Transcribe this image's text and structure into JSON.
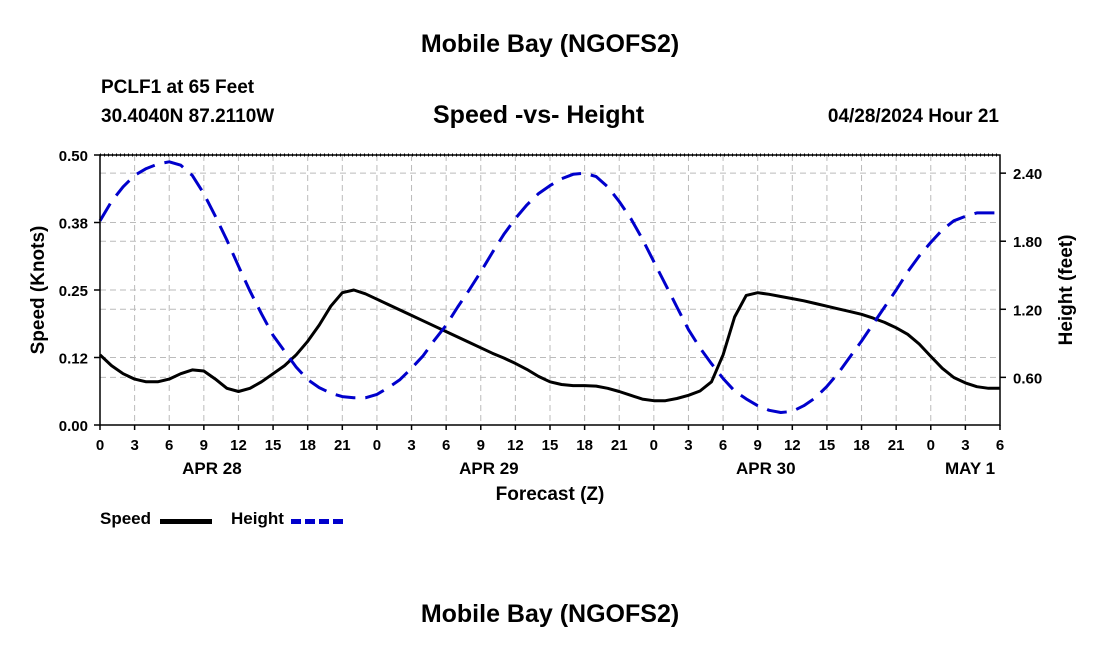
{
  "header": {
    "title": "Mobile Bay (NGOFS2)",
    "station": "PCLF1 at 65 Feet",
    "coords": "30.4040N  87.2110W",
    "subtitle": "Speed -vs- Height",
    "datetime": "04/28/2024 Hour 21"
  },
  "footer": {
    "title": "Mobile Bay (NGOFS2)"
  },
  "legend": {
    "speed_label": "Speed",
    "height_label": "Height"
  },
  "colors": {
    "speed": "#000000",
    "height": "#0000cc",
    "grid": "#bbbbbb"
  },
  "chart_data": {
    "type": "line",
    "xlabel": "Forecast (Z)",
    "ylabel": "Speed (Knots)",
    "y2label": "Height (feet)",
    "x_unit": "hours since APR 28 00Z",
    "xlim": [
      0,
      78
    ],
    "ylim": [
      0,
      0.5
    ],
    "y2lim": [
      0.18,
      2.56
    ],
    "yticks": [
      0,
      0.125,
      0.25,
      0.375,
      0.5
    ],
    "ytick_labels": [
      "0.00",
      "0.12",
      "0.25",
      "0.38",
      "0.50"
    ],
    "y2ticks": [
      0.6,
      1.2,
      1.8,
      2.4
    ],
    "y2tick_labels": [
      "0.60",
      "1.20",
      "1.80",
      "2.40"
    ],
    "xticks": [
      0,
      3,
      6,
      9,
      12,
      15,
      18,
      21,
      24,
      27,
      30,
      33,
      36,
      39,
      42,
      45,
      48,
      51,
      54,
      57,
      60,
      63,
      66,
      69,
      72,
      75,
      78
    ],
    "xtick_labels": [
      "0",
      "3",
      "6",
      "9",
      "12",
      "15",
      "18",
      "21",
      "0",
      "3",
      "6",
      "9",
      "12",
      "15",
      "18",
      "21",
      "0",
      "3",
      "6",
      "9",
      "12",
      "15",
      "18",
      "21",
      "0",
      "3",
      "6"
    ],
    "date_labels": [
      {
        "x": 9.7,
        "label": "APR 28"
      },
      {
        "x": 33.7,
        "label": "APR 29"
      },
      {
        "x": 57.7,
        "label": "APR 30"
      },
      {
        "x": 75.4,
        "label": "MAY 1"
      }
    ],
    "grid": true,
    "series": [
      {
        "name": "Speed",
        "axis": "left",
        "style": "solid",
        "points": [
          [
            0,
            0.13
          ],
          [
            1,
            0.11
          ],
          [
            2,
            0.095
          ],
          [
            3,
            0.085
          ],
          [
            4,
            0.08
          ],
          [
            5,
            0.08
          ],
          [
            6,
            0.085
          ],
          [
            7,
            0.095
          ],
          [
            8,
            0.102
          ],
          [
            9,
            0.1
          ],
          [
            10,
            0.085
          ],
          [
            11,
            0.068
          ],
          [
            12,
            0.062
          ],
          [
            13,
            0.068
          ],
          [
            14,
            0.08
          ],
          [
            15,
            0.095
          ],
          [
            16,
            0.11
          ],
          [
            17,
            0.13
          ],
          [
            18,
            0.155
          ],
          [
            19,
            0.185
          ],
          [
            20,
            0.22
          ],
          [
            21,
            0.245
          ],
          [
            22,
            0.25
          ],
          [
            23,
            0.243
          ],
          [
            24,
            0.233
          ],
          [
            25,
            0.223
          ],
          [
            26,
            0.213
          ],
          [
            27,
            0.203
          ],
          [
            28,
            0.193
          ],
          [
            29,
            0.183
          ],
          [
            30,
            0.173
          ],
          [
            31,
            0.163
          ],
          [
            32,
            0.153
          ],
          [
            33,
            0.143
          ],
          [
            34,
            0.133
          ],
          [
            35,
            0.124
          ],
          [
            36,
            0.114
          ],
          [
            37,
            0.103
          ],
          [
            38,
            0.09
          ],
          [
            39,
            0.08
          ],
          [
            40,
            0.075
          ],
          [
            41,
            0.073
          ],
          [
            42,
            0.073
          ],
          [
            43,
            0.072
          ],
          [
            44,
            0.068
          ],
          [
            45,
            0.062
          ],
          [
            46,
            0.055
          ],
          [
            47,
            0.048
          ],
          [
            48,
            0.045
          ],
          [
            49,
            0.045
          ],
          [
            50,
            0.049
          ],
          [
            51,
            0.055
          ],
          [
            52,
            0.063
          ],
          [
            53,
            0.08
          ],
          [
            54,
            0.13
          ],
          [
            55,
            0.2
          ],
          [
            56,
            0.24
          ],
          [
            57,
            0.245
          ],
          [
            58,
            0.242
          ],
          [
            59,
            0.238
          ],
          [
            60,
            0.234
          ],
          [
            61,
            0.23
          ],
          [
            62,
            0.225
          ],
          [
            63,
            0.22
          ],
          [
            64,
            0.215
          ],
          [
            65,
            0.21
          ],
          [
            66,
            0.205
          ],
          [
            67,
            0.198
          ],
          [
            68,
            0.19
          ],
          [
            69,
            0.18
          ],
          [
            70,
            0.168
          ],
          [
            71,
            0.15
          ],
          [
            72,
            0.127
          ],
          [
            73,
            0.105
          ],
          [
            74,
            0.088
          ],
          [
            75,
            0.078
          ],
          [
            76,
            0.071
          ],
          [
            77,
            0.068
          ],
          [
            78,
            0.068
          ]
        ]
      },
      {
        "name": "Height",
        "axis": "right",
        "style": "dashed",
        "points": [
          [
            0,
            1.98
          ],
          [
            1,
            2.15
          ],
          [
            2,
            2.28
          ],
          [
            3,
            2.38
          ],
          [
            4,
            2.44
          ],
          [
            5,
            2.48
          ],
          [
            6,
            2.5
          ],
          [
            7,
            2.47
          ],
          [
            8,
            2.38
          ],
          [
            9,
            2.22
          ],
          [
            10,
            2.02
          ],
          [
            11,
            1.81
          ],
          [
            12,
            1.58
          ],
          [
            13,
            1.36
          ],
          [
            14,
            1.16
          ],
          [
            15,
            0.97
          ],
          [
            16,
            0.83
          ],
          [
            17,
            0.69
          ],
          [
            18,
            0.58
          ],
          [
            19,
            0.51
          ],
          [
            20,
            0.46
          ],
          [
            21,
            0.43
          ],
          [
            22,
            0.42
          ],
          [
            23,
            0.42
          ],
          [
            24,
            0.45
          ],
          [
            25,
            0.51
          ],
          [
            26,
            0.58
          ],
          [
            27,
            0.68
          ],
          [
            28,
            0.79
          ],
          [
            29,
            0.93
          ],
          [
            30,
            1.06
          ],
          [
            31,
            1.22
          ],
          [
            32,
            1.37
          ],
          [
            33,
            1.53
          ],
          [
            34,
            1.7
          ],
          [
            35,
            1.86
          ],
          [
            36,
            2.0
          ],
          [
            37,
            2.12
          ],
          [
            38,
            2.22
          ],
          [
            39,
            2.29
          ],
          [
            40,
            2.35
          ],
          [
            41,
            2.39
          ],
          [
            42,
            2.4
          ],
          [
            43,
            2.37
          ],
          [
            44,
            2.28
          ],
          [
            45,
            2.15
          ],
          [
            46,
            2.0
          ],
          [
            47,
            1.82
          ],
          [
            48,
            1.62
          ],
          [
            49,
            1.42
          ],
          [
            50,
            1.22
          ],
          [
            51,
            1.02
          ],
          [
            52,
            0.86
          ],
          [
            53,
            0.72
          ],
          [
            54,
            0.59
          ],
          [
            55,
            0.48
          ],
          [
            56,
            0.41
          ],
          [
            57,
            0.35
          ],
          [
            58,
            0.31
          ],
          [
            59,
            0.29
          ],
          [
            60,
            0.3
          ],
          [
            61,
            0.35
          ],
          [
            62,
            0.42
          ],
          [
            63,
            0.52
          ],
          [
            64,
            0.64
          ],
          [
            65,
            0.78
          ],
          [
            66,
            0.92
          ],
          [
            67,
            1.07
          ],
          [
            68,
            1.22
          ],
          [
            69,
            1.37
          ],
          [
            70,
            1.53
          ],
          [
            71,
            1.67
          ],
          [
            72,
            1.79
          ],
          [
            73,
            1.9
          ],
          [
            74,
            1.98
          ],
          [
            75,
            2.02
          ],
          [
            76,
            2.05
          ],
          [
            77,
            2.05
          ],
          [
            78,
            2.05
          ]
        ]
      }
    ]
  }
}
